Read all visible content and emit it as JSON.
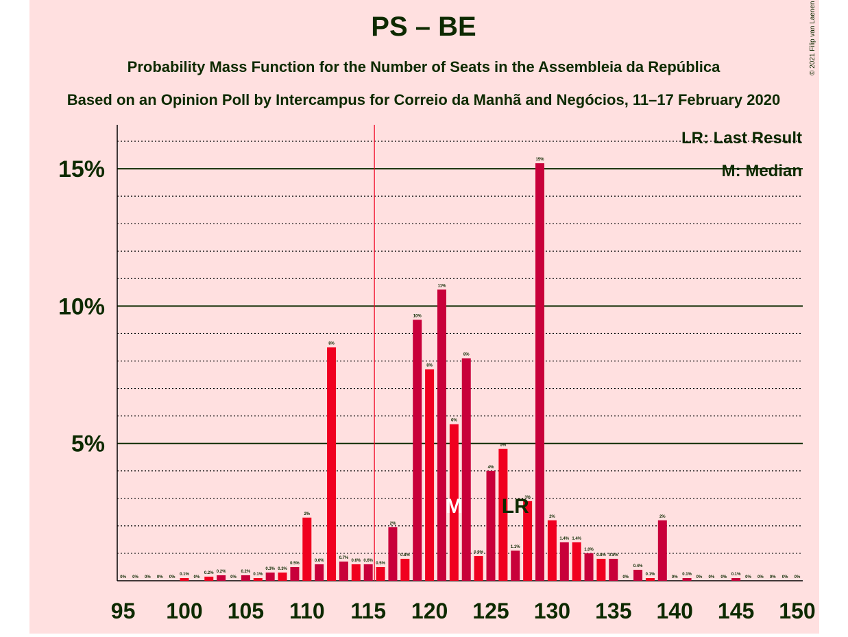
{
  "chart_data": {
    "type": "bar",
    "title": "PS – BE",
    "subtitle": "Probability Mass Function for the Number of Seats in the Assembleia da República",
    "subtitle2": "Based on an Opinion Poll by Intercampus for Correio da Manhã and Negócios, 11–17 February 2020",
    "copyright": "© 2021 Filip van Laenen",
    "legend": [
      "LR: Last Result",
      "M: Median"
    ],
    "x": [
      95,
      96,
      97,
      98,
      99,
      100,
      101,
      102,
      103,
      104,
      105,
      106,
      107,
      108,
      109,
      110,
      111,
      112,
      113,
      114,
      115,
      116,
      117,
      118,
      119,
      120,
      121,
      122,
      123,
      124,
      125,
      126,
      127,
      128,
      129,
      130,
      131,
      132,
      133,
      134,
      135,
      136,
      137,
      138,
      139,
      140,
      141,
      142,
      143,
      144,
      145,
      146,
      147,
      148,
      149,
      150
    ],
    "values": [
      0,
      0,
      0,
      0,
      0,
      0.1,
      0,
      0.15,
      0.2,
      0,
      0.2,
      0.1,
      0.3,
      0.3,
      0.5,
      2.3,
      0.6,
      8.5,
      0.7,
      0.6,
      0.6,
      0.5,
      1.95,
      0.8,
      9.5,
      7.7,
      10.6,
      5.7,
      8.1,
      0.9,
      4.0,
      4.8,
      1.1,
      2.9,
      15.2,
      2.2,
      1.4,
      1.4,
      1.0,
      0.8,
      0.8,
      0,
      0.4,
      0.1,
      2.2,
      0,
      0.1,
      0,
      0,
      0,
      0.1,
      0,
      0,
      0,
      0,
      0
    ],
    "value_labels": [
      "0%",
      "0%",
      "0%",
      "0%",
      "0%",
      "0.1%",
      "0%",
      "0.2%",
      "0.2%",
      "0%",
      "0.2%",
      "0.1%",
      "0.3%",
      "0.3%",
      "0.5%",
      "2%",
      "0.6%",
      "8%",
      "0.7%",
      "0.6%",
      "0.6%",
      "0.5%",
      "2%",
      "0.8%",
      "10%",
      "8%",
      "11%",
      "6%",
      "8%",
      "0.9%",
      "4%",
      "5%",
      "1.1%",
      "3%",
      "15%",
      "2%",
      "1.4%",
      "1.4%",
      "1.0%",
      "0.8%",
      "0.8%",
      "0%",
      "0.4%",
      "0.1%",
      "2%",
      "0%",
      "0.1%",
      "0%",
      "0%",
      "0%",
      "0.1%",
      "0%",
      "0%",
      "0%",
      "0%",
      "0%"
    ],
    "colors": [
      "#f0001f",
      "#c8003a"
    ],
    "xlim": [
      94.5,
      150.5
    ],
    "xticks": [
      95,
      100,
      105,
      110,
      115,
      120,
      125,
      130,
      135,
      140,
      145,
      150
    ],
    "ylim": [
      0,
      16.5
    ],
    "yticks": [
      {
        "value": 5,
        "label": "5%"
      },
      {
        "value": 10,
        "label": "10%"
      },
      {
        "value": 15,
        "label": "15%"
      }
    ],
    "minor_yticks": [
      1,
      2,
      3,
      4,
      6,
      7,
      8,
      9,
      11,
      12,
      13,
      14,
      16
    ],
    "majority_line": 115.5,
    "markers": [
      {
        "label": "M",
        "x": 122
      },
      {
        "label": "LR",
        "x": 127
      }
    ]
  }
}
